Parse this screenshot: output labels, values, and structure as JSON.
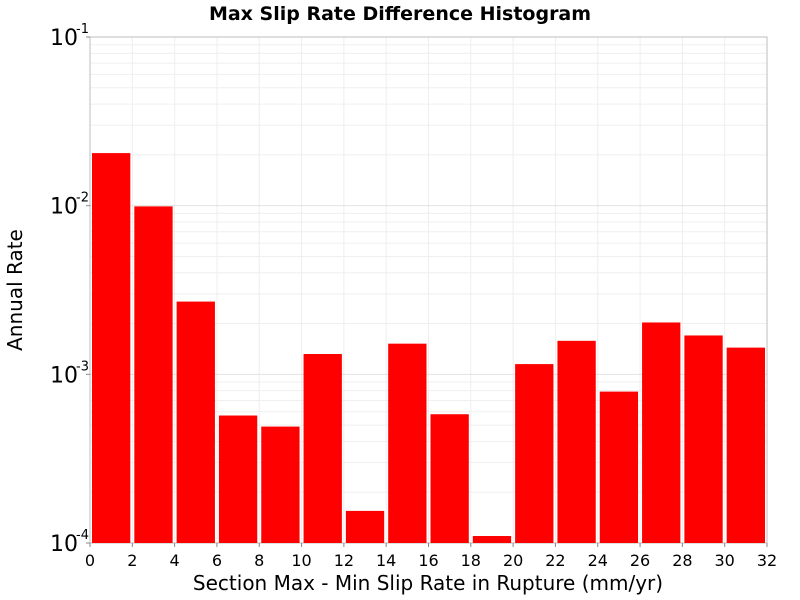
{
  "chart_data": {
    "type": "bar",
    "title": "Max Slip Rate Difference Histogram",
    "xlabel": "Section Max - Min Slip Rate in Rupture (mm/yr)",
    "ylabel": "Annual Rate",
    "xlim": [
      0,
      32
    ],
    "ylim": [
      0.0001,
      0.1
    ],
    "yscale": "log",
    "bar_width": 2,
    "bar_color": "#ff0000",
    "grid": true,
    "x_ticks": [
      "0",
      "2",
      "4",
      "6",
      "8",
      "10",
      "12",
      "14",
      "16",
      "18",
      "20",
      "22",
      "24",
      "26",
      "28",
      "30",
      "32"
    ],
    "x_tick_values": [
      0,
      2,
      4,
      6,
      8,
      10,
      12,
      14,
      16,
      18,
      20,
      22,
      24,
      26,
      28,
      30,
      32
    ],
    "y_ticks": [
      {
        "base": "10",
        "exp": "-1",
        "value": 0.1
      },
      {
        "base": "10",
        "exp": "-2",
        "value": 0.01
      },
      {
        "base": "10",
        "exp": "-3",
        "value": 0.001
      },
      {
        "base": "10",
        "exp": "-4",
        "value": 0.0001
      }
    ],
    "x": [
      1,
      3,
      5,
      7,
      9,
      11,
      13,
      15,
      17,
      19,
      21,
      23,
      25,
      27,
      29,
      31
    ],
    "values": [
      0.0205,
      0.0099,
      0.0027,
      0.00057,
      0.00049,
      0.00132,
      0.000155,
      0.00152,
      0.00058,
      0.00011,
      0.00115,
      0.00158,
      0.00079,
      0.00203,
      0.0017,
      0.00144
    ]
  }
}
